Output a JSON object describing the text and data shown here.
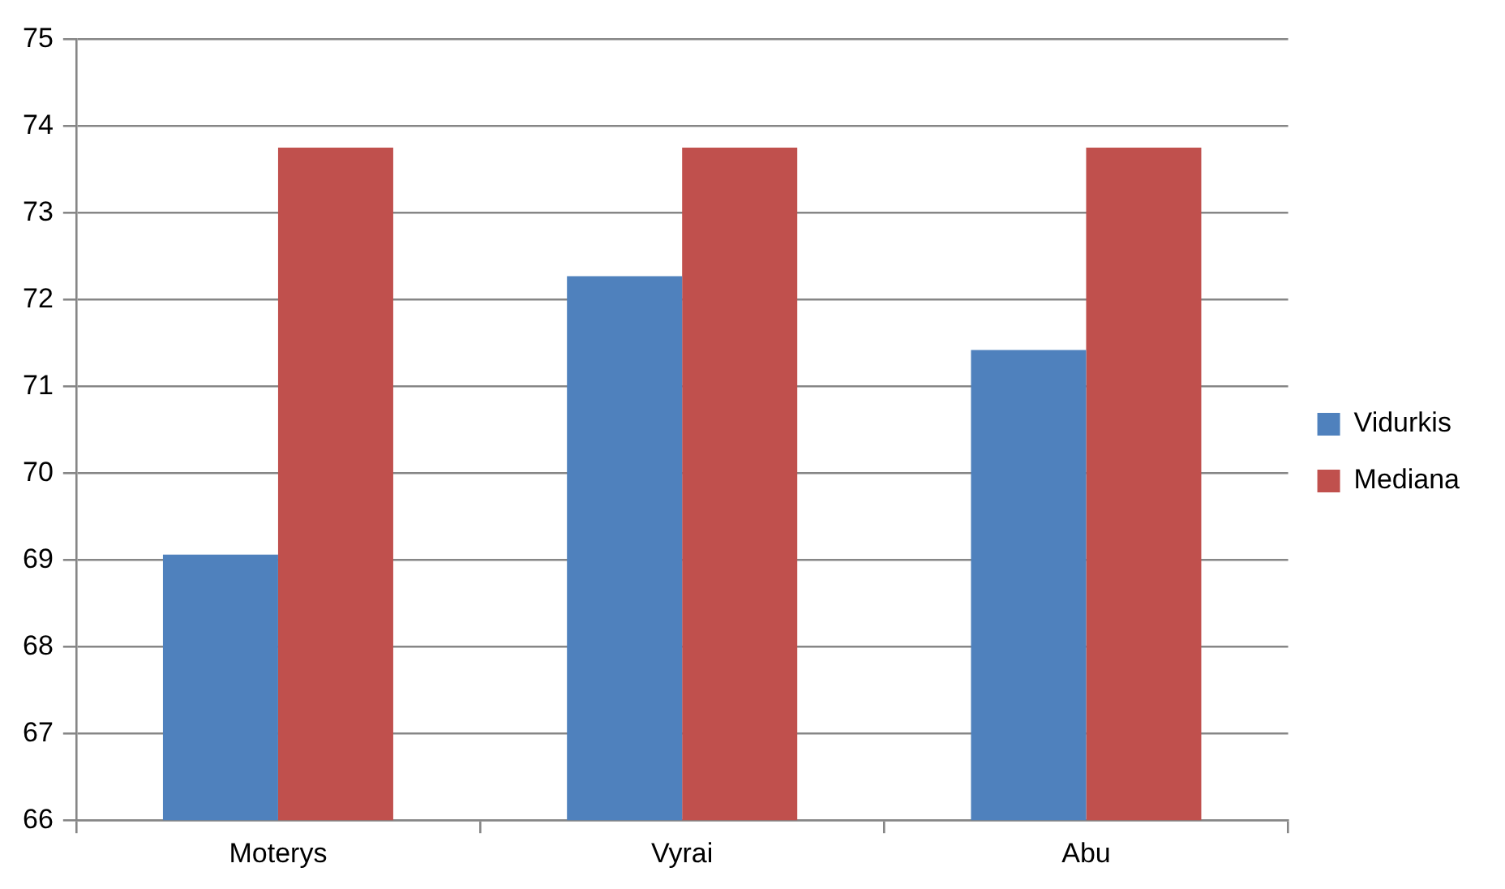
{
  "chart_data": {
    "type": "bar",
    "categories": [
      "Moterys",
      "Vyrai",
      "Abu"
    ],
    "series": [
      {
        "name": "Vidurkis",
        "color": "#4f81bd",
        "values": [
          69.06,
          72.27,
          71.42
        ]
      },
      {
        "name": "Mediana",
        "color": "#c0504d",
        "values": [
          73.75,
          73.75,
          73.75
        ]
      }
    ],
    "ylim": [
      66,
      75
    ],
    "yticks": [
      66,
      67,
      68,
      69,
      70,
      71,
      72,
      73,
      74,
      75
    ],
    "grid": "y",
    "legend": "right"
  }
}
